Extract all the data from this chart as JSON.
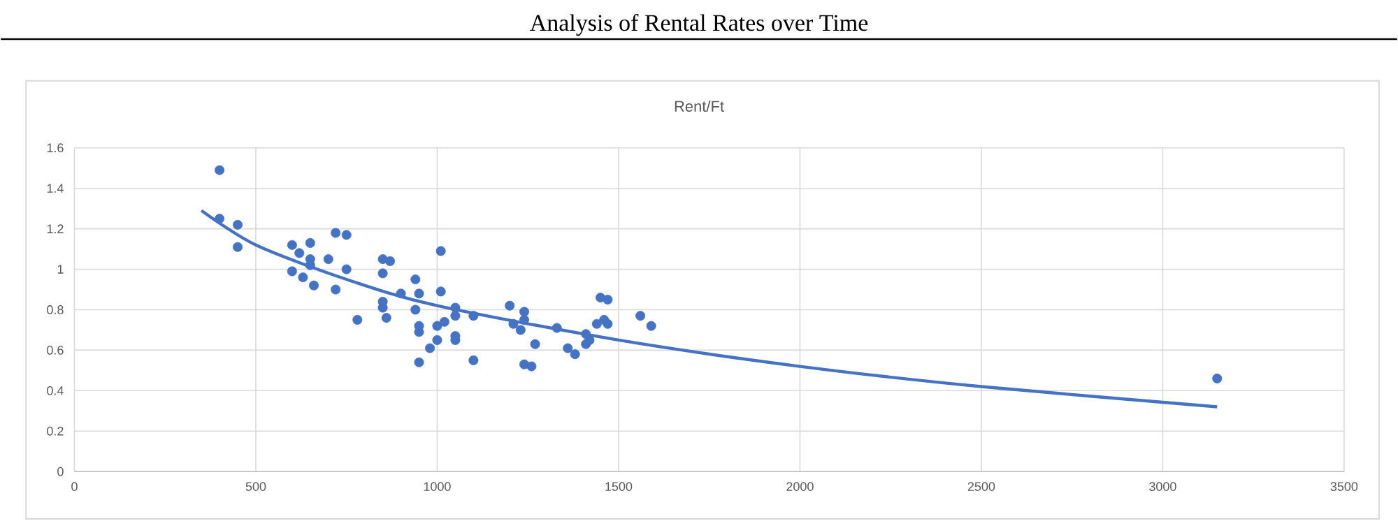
{
  "chart_data": {
    "type": "scatter",
    "title": "Analysis of Rental Rates over Time",
    "subtitle": "Rent/Ft",
    "xlim": [
      0,
      3500
    ],
    "xticks": [
      0,
      500,
      1000,
      1500,
      2000,
      2500,
      3000,
      3500
    ],
    "ylim": [
      0,
      1.6
    ],
    "yticks": [
      0,
      0.2,
      0.4,
      0.6,
      0.8,
      1,
      1.2,
      1.4,
      1.6
    ],
    "grid": true,
    "marker": "circle",
    "series": [
      {
        "color": "#4472c4",
        "x": [
          400,
          400,
          450,
          450,
          600,
          600,
          620,
          630,
          650,
          650,
          650,
          660,
          700,
          720,
          720,
          750,
          750,
          780,
          850,
          850,
          850,
          850,
          860,
          870,
          900,
          940,
          940,
          950,
          950,
          950,
          950,
          980,
          1000,
          1000,
          1010,
          1010,
          1020,
          1050,
          1050,
          1050,
          1050,
          1100,
          1100,
          1200,
          1210,
          1230,
          1240,
          1240,
          1240,
          1260,
          1270,
          1330,
          1360,
          1380,
          1410,
          1410,
          1420,
          1440,
          1450,
          1460,
          1470,
          1470,
          1560,
          1590,
          3150
        ],
        "values": [
          1.49,
          1.25,
          1.22,
          1.11,
          1.12,
          0.99,
          1.08,
          0.96,
          1.13,
          1.05,
          1.02,
          0.92,
          1.05,
          1.18,
          0.9,
          1.17,
          1.0,
          0.75,
          1.05,
          0.98,
          0.84,
          0.81,
          0.76,
          1.04,
          0.88,
          0.95,
          0.8,
          0.88,
          0.72,
          0.69,
          0.54,
          0.61,
          0.72,
          0.65,
          1.09,
          0.89,
          0.74,
          0.81,
          0.77,
          0.67,
          0.65,
          0.77,
          0.55,
          0.82,
          0.73,
          0.7,
          0.79,
          0.75,
          0.53,
          0.52,
          0.63,
          0.71,
          0.61,
          0.58,
          0.68,
          0.63,
          0.65,
          0.73,
          0.86,
          0.75,
          0.85,
          0.73,
          0.77,
          0.72,
          0.46
        ]
      },
      {
        "type": "line",
        "color": "#4472c4",
        "marker": "none",
        "x": [
          350,
          500,
          750,
          1000,
          1500,
          2000,
          2500,
          3150
        ],
        "values": [
          1.29,
          1.12,
          0.95,
          0.82,
          0.65,
          0.52,
          0.42,
          0.32
        ]
      }
    ]
  }
}
